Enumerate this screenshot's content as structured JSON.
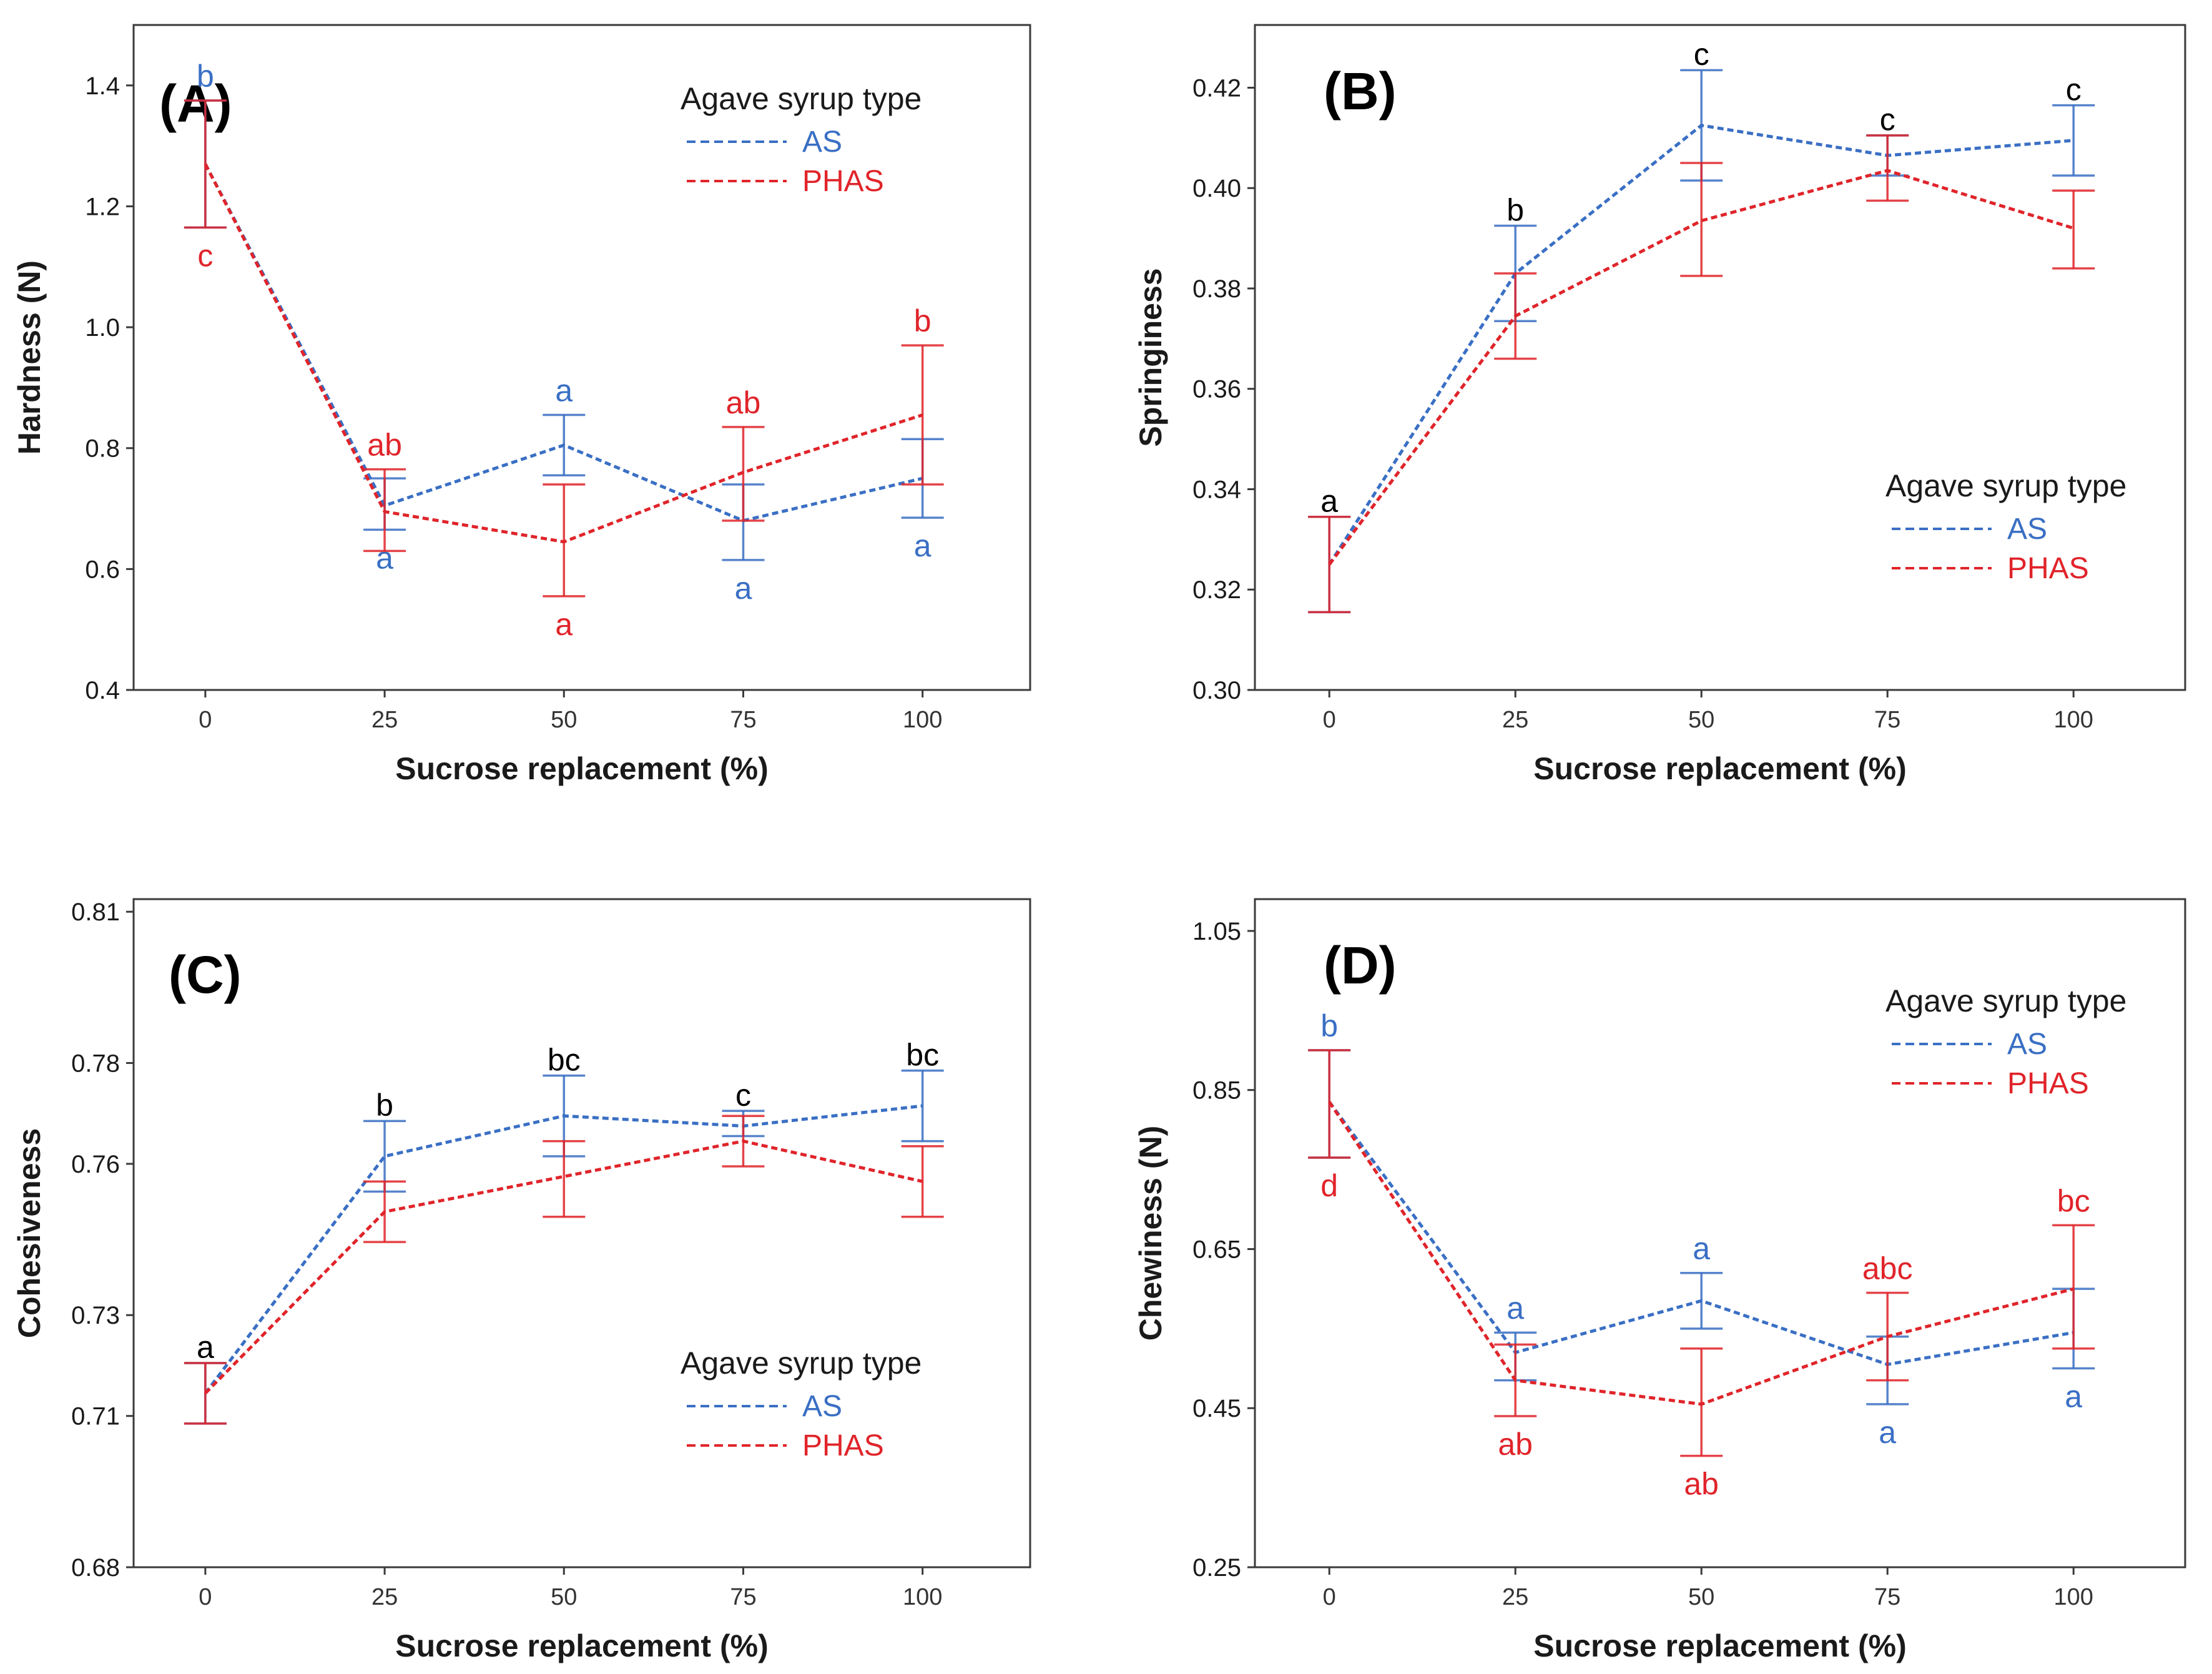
{
  "legend_title": "Agave  syrup type",
  "colors": {
    "AS": "#3a6fc4",
    "PHAS": "#e0242a",
    "frame": "#3a3a3a",
    "text": "#1a1a1a"
  },
  "chart_data": [
    {
      "type": "line",
      "panel_label": "(A)",
      "xlabel": "Sucrose replacement (%)",
      "ylabel": "Hardness (N)",
      "categories": [
        "0",
        "25",
        "50",
        "75",
        "100"
      ],
      "x": [
        0,
        25,
        50,
        75,
        100
      ],
      "xlim": [
        -10,
        115
      ],
      "ylim": [
        0.4,
        1.5
      ],
      "yticks": [
        0.4,
        0.6,
        0.8,
        1.0,
        1.2,
        1.4
      ],
      "ytick_labels": [
        "0.4",
        "0.6",
        "0.8",
        "1.0",
        "1.2",
        "1.4"
      ],
      "legend_position": "top-right",
      "series": [
        {
          "name": "AS",
          "values": [
            1.27,
            0.705,
            0.805,
            0.68,
            0.75
          ],
          "err_low": [
            1.165,
            0.665,
            0.755,
            0.615,
            0.685
          ],
          "err_high": [
            1.375,
            0.75,
            0.855,
            0.74,
            0.815
          ],
          "letters": [
            "b",
            "a",
            "a",
            "a",
            "a"
          ],
          "letter_pos": [
            "above",
            "below",
            "above",
            "below",
            "below"
          ]
        },
        {
          "name": "PHAS",
          "values": [
            1.27,
            0.695,
            0.645,
            0.76,
            0.855
          ],
          "err_low": [
            1.165,
            0.63,
            0.555,
            0.68,
            0.74
          ],
          "err_high": [
            1.375,
            0.765,
            0.74,
            0.835,
            0.97
          ],
          "letters": [
            "c",
            "ab",
            "a",
            "ab",
            "b"
          ],
          "letter_pos": [
            "below",
            "above",
            "below",
            "above",
            "above"
          ]
        }
      ],
      "shared_letters": []
    },
    {
      "type": "line",
      "panel_label": "(B)",
      "xlabel": "Sucrose replacement (%)",
      "ylabel": "Springiness",
      "categories": [
        "0",
        "25",
        "50",
        "75",
        "100"
      ],
      "x": [
        0,
        25,
        50,
        75,
        100
      ],
      "xlim": [
        -10,
        115
      ],
      "ylim": [
        0.3,
        0.4325
      ],
      "yticks": [
        0.3,
        0.32,
        0.34,
        0.36,
        0.38,
        0.4,
        0.42
      ],
      "ytick_labels": [
        "0.30",
        "0.32",
        "0.34",
        "0.36",
        "0.38",
        "0.40",
        "0.42"
      ],
      "legend_position": "middle-right",
      "series": [
        {
          "name": "AS",
          "values": [
            0.325,
            0.383,
            0.4125,
            0.4065,
            0.4095
          ],
          "err_low": [
            0.3155,
            0.3735,
            0.4015,
            0.4025,
            0.4025
          ],
          "err_high": [
            0.3345,
            0.3925,
            0.4235,
            0.4105,
            0.4165
          ],
          "letters": [],
          "letter_pos": []
        },
        {
          "name": "PHAS",
          "values": [
            0.325,
            0.3745,
            0.3935,
            0.4035,
            0.392
          ],
          "err_low": [
            0.3155,
            0.366,
            0.3825,
            0.3975,
            0.384
          ],
          "err_high": [
            0.3345,
            0.383,
            0.405,
            0.4105,
            0.3995
          ],
          "letters": [],
          "letter_pos": []
        }
      ],
      "shared_letters": [
        {
          "index": 0,
          "text": "a",
          "value": 0.3375
        },
        {
          "index": 1,
          "text": "b",
          "value": 0.3955
        },
        {
          "index": 2,
          "text": "c",
          "value": 0.4265
        },
        {
          "index": 3,
          "text": "c",
          "value": 0.4135
        },
        {
          "index": 4,
          "text": "c",
          "value": 0.4195
        }
      ]
    },
    {
      "type": "line",
      "panel_label": "(C)",
      "xlabel": "Sucrose replacement (%)",
      "ylabel": "Cohesiveness",
      "categories": [
        "0",
        "25",
        "50",
        "75",
        "100"
      ],
      "x": [
        0,
        25,
        50,
        75,
        100
      ],
      "xlim": [
        -10,
        115
      ],
      "ylim": [
        0.68,
        0.8125
      ],
      "yticks": [
        0.68,
        0.71,
        0.73,
        0.76,
        0.78,
        0.81
      ],
      "ytick_labels": [
        "0.68",
        "0.71",
        "0.73",
        "0.76",
        "0.78",
        "0.81"
      ],
      "legend_position": "bottom-right",
      "series": [
        {
          "name": "AS",
          "values": [
            0.7145,
            0.7615,
            0.7695,
            0.7675,
            0.7715
          ],
          "err_low": [
            0.7085,
            0.7545,
            0.7615,
            0.7655,
            0.7645
          ],
          "err_high": [
            0.7205,
            0.7685,
            0.7775,
            0.7705,
            0.7785
          ],
          "letters": [],
          "letter_pos": []
        },
        {
          "name": "PHAS",
          "values": [
            0.7145,
            0.7505,
            0.7575,
            0.7645,
            0.7565
          ],
          "err_low": [
            0.7085,
            0.7445,
            0.7495,
            0.7595,
            0.7495
          ],
          "err_high": [
            0.7205,
            0.7565,
            0.7645,
            0.7695,
            0.7635
          ],
          "letters": [],
          "letter_pos": []
        }
      ],
      "shared_letters": [
        {
          "index": 0,
          "text": "a",
          "value": 0.7235
        },
        {
          "index": 1,
          "text": "b",
          "value": 0.7715
        },
        {
          "index": 2,
          "text": "bc",
          "value": 0.7805
        },
        {
          "index": 3,
          "text": "c",
          "value": 0.7735
        },
        {
          "index": 4,
          "text": "bc",
          "value": 0.7815
        }
      ]
    },
    {
      "type": "line",
      "panel_label": "(D)",
      "xlabel": "Sucrose replacement (%)",
      "ylabel": "Chewiness   (N)",
      "categories": [
        "0",
        "25",
        "50",
        "75",
        "100"
      ],
      "x": [
        0,
        25,
        50,
        75,
        100
      ],
      "xlim": [
        -10,
        115
      ],
      "ylim": [
        0.25,
        1.09
      ],
      "yticks": [
        0.25,
        0.45,
        0.65,
        0.85,
        1.05
      ],
      "ytick_labels": [
        "0.25",
        "0.45",
        "0.65",
        "0.85",
        "1.05"
      ],
      "legend_position": "top-right",
      "series": [
        {
          "name": "AS",
          "values": [
            0.835,
            0.52,
            0.585,
            0.505,
            0.545
          ],
          "err_low": [
            0.765,
            0.485,
            0.55,
            0.455,
            0.5
          ],
          "err_high": [
            0.9,
            0.545,
            0.62,
            0.54,
            0.6
          ],
          "letters": [
            "b",
            "a",
            "a",
            "a",
            "a"
          ],
          "letter_pos": [
            "above",
            "above",
            "above",
            "below",
            "below"
          ]
        },
        {
          "name": "PHAS",
          "values": [
            0.835,
            0.485,
            0.455,
            0.54,
            0.6
          ],
          "err_low": [
            0.765,
            0.44,
            0.39,
            0.485,
            0.525
          ],
          "err_high": [
            0.9,
            0.53,
            0.525,
            0.595,
            0.68
          ],
          "letters": [
            "d",
            "ab",
            "ab",
            "abc",
            "bc"
          ],
          "letter_pos": [
            "below",
            "below",
            "below",
            "above",
            "above"
          ]
        }
      ],
      "shared_letters": []
    }
  ]
}
